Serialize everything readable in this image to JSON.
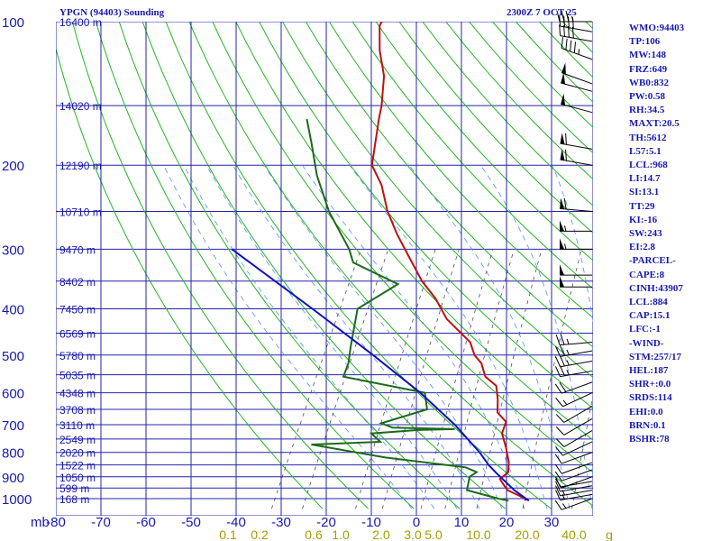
{
  "header": {
    "station": "YPGN (94403) Sounding",
    "valid_time": "2300Z  7 OCT 25"
  },
  "indices": [
    "WMO:94403",
    "TP:106",
    "MW:148",
    "FRZ:649",
    "WB0:832",
    "PW:0.58",
    "RH:34.5",
    "MAXT:20.5",
    "TH:5612",
    "L57:5.1",
    "LCL:968",
    "LI:14.7",
    "SI:13.1",
    "TT:29",
    "KI:-16",
    "SW:243",
    "EI:2.8",
    "-PARCEL-",
    "CAPE:8",
    "CINH:43907",
    "LCL:884",
    "CAP:15.1",
    "LFC:-1",
    "-WIND-",
    "STM:257/17",
    "HEL:187",
    "SHR+:0.0",
    "SRDS:114",
    "EHI:0.0",
    "BRN:0.1",
    "BSHR:78"
  ],
  "colors": {
    "text": "#1818b0",
    "grid": "#2424a8",
    "dry_adiabats": "#24b424",
    "moist_adiabats": "#5a8cff",
    "mixing_ratio": "#505050",
    "temperature": "#c01010",
    "dewpoint": "#1b6b1b",
    "parcel": "#1010c0",
    "barbs": "#000000"
  },
  "chart_data": {
    "type": "skew-t",
    "x_unit_label": "mb",
    "pressure_ticks": [
      "100",
      "200",
      "300",
      "400",
      "500",
      "600",
      "700",
      "800",
      "900",
      "1000"
    ],
    "pressure_values": [
      100,
      200,
      300,
      400,
      500,
      600,
      700,
      800,
      900,
      1000
    ],
    "temperature_ticks": [
      "-80",
      "-70",
      "-60",
      "-50",
      "-40",
      "-30",
      "-20",
      "-10",
      "0",
      "10",
      "20",
      "30"
    ],
    "mixing_ratio_ticks": [
      "0.1",
      "0.2",
      "0.6",
      "1.0",
      "2.0",
      "3.0",
      "5.0",
      "10.0",
      "20.0",
      "40.0",
      "g"
    ],
    "height_labels": [
      {
        "p": 100,
        "label": "16400 m"
      },
      {
        "p": 150,
        "label": "14020 m"
      },
      {
        "p": 200,
        "label": "12190 m"
      },
      {
        "p": 250,
        "label": "10710 m"
      },
      {
        "p": 300,
        "label": "9470 m"
      },
      {
        "p": 350,
        "label": "8402 m"
      },
      {
        "p": 400,
        "label": "7450 m"
      },
      {
        "p": 450,
        "label": "6569 m"
      },
      {
        "p": 500,
        "label": "5780 m"
      },
      {
        "p": 550,
        "label": "5035 m"
      },
      {
        "p": 600,
        "label": "4348 m"
      },
      {
        "p": 650,
        "label": "3708 m"
      },
      {
        "p": 700,
        "label": "3110 m"
      },
      {
        "p": 750,
        "label": "2549 m"
      },
      {
        "p": 800,
        "label": "2020 m"
      },
      {
        "p": 850,
        "label": "1522 m"
      },
      {
        "p": 900,
        "label": "1050 m"
      },
      {
        "p": 950,
        "label": "599 m"
      },
      {
        "p": 1000,
        "label": "168 m"
      }
    ],
    "series": [
      {
        "name": "temperature",
        "points": [
          [
            1010,
            14.3
          ],
          [
            1000,
            14.0
          ],
          [
            960,
            9.0
          ],
          [
            935,
            7.5
          ],
          [
            910,
            6.0
          ],
          [
            880,
            7.0
          ],
          [
            840,
            6.0
          ],
          [
            780,
            3.5
          ],
          [
            730,
            1.0
          ],
          [
            690,
            0.5
          ],
          [
            660,
            -2.5
          ],
          [
            620,
            -4.0
          ],
          [
            580,
            -6.0
          ],
          [
            555,
            -9.5
          ],
          [
            520,
            -12.0
          ],
          [
            500,
            -14.5
          ],
          [
            470,
            -17.0
          ],
          [
            420,
            -25.0
          ],
          [
            380,
            -30.0
          ],
          [
            350,
            -35.0
          ],
          [
            310,
            -41.0
          ],
          [
            280,
            -46.0
          ],
          [
            250,
            -51.0
          ],
          [
            220,
            -55.5
          ],
          [
            200,
            -60.0
          ],
          [
            160,
            -64.0
          ],
          [
            150,
            -65.0
          ],
          [
            130,
            -68.0
          ],
          [
            115,
            -72.0
          ],
          [
            102,
            -75.0
          ],
          [
            100,
            -75.0
          ]
        ]
      },
      {
        "name": "dewpoint",
        "points": [
          [
            1010,
            10.5
          ],
          [
            1000,
            8.0
          ],
          [
            960,
            0.0
          ],
          [
            900,
            -1.0
          ],
          [
            880,
            0.0
          ],
          [
            860,
            -3.0
          ],
          [
            820,
            -22.0
          ],
          [
            770,
            -40.0
          ],
          [
            760,
            -25.0
          ],
          [
            730,
            -28.0
          ],
          [
            718,
            -18.0
          ],
          [
            715,
            -10.0
          ],
          [
            710,
            -24.0
          ],
          [
            695,
            -27.0
          ],
          [
            650,
            -18.5
          ],
          [
            600,
            -21.0
          ],
          [
            555,
            -41.0
          ],
          [
            520,
            -41.5
          ],
          [
            480,
            -43.0
          ],
          [
            400,
            -46.0
          ],
          [
            355,
            -40.0
          ],
          [
            320,
            -52.5
          ],
          [
            300,
            -55.0
          ],
          [
            250,
            -64.0
          ],
          [
            210,
            -71.0
          ],
          [
            180,
            -76.0
          ],
          [
            160,
            -80.0
          ]
        ]
      },
      {
        "name": "parcel",
        "points": [
          [
            1010,
            15.0
          ],
          [
            960,
            10.5
          ],
          [
            884,
            4.5
          ],
          [
            850,
            1.8
          ],
          [
            800,
            -1.7
          ],
          [
            700,
            -10.5
          ],
          [
            600,
            -22.0
          ],
          [
            500,
            -37.0
          ],
          [
            400,
            -56.0
          ],
          [
            300,
            -81.0
          ]
        ]
      }
    ],
    "wind_barbs": [
      {
        "p": 1000,
        "dir": 250,
        "spd": 15
      },
      {
        "p": 980,
        "dir": 260,
        "spd": 15
      },
      {
        "p": 960,
        "dir": 260,
        "spd": 15
      },
      {
        "p": 940,
        "dir": 260,
        "spd": 10
      },
      {
        "p": 920,
        "dir": 260,
        "spd": 10
      },
      {
        "p": 900,
        "dir": 250,
        "spd": 10
      },
      {
        "p": 870,
        "dir": 250,
        "spd": 10
      },
      {
        "p": 840,
        "dir": 250,
        "spd": 10
      },
      {
        "p": 800,
        "dir": 250,
        "spd": 10
      },
      {
        "p": 760,
        "dir": 245,
        "spd": 10
      },
      {
        "p": 720,
        "dir": 240,
        "spd": 10
      },
      {
        "p": 680,
        "dir": 240,
        "spd": 10
      },
      {
        "p": 640,
        "dir": 240,
        "spd": 10
      },
      {
        "p": 600,
        "dir": 245,
        "spd": 15
      },
      {
        "p": 570,
        "dir": 250,
        "spd": 20
      },
      {
        "p": 540,
        "dir": 260,
        "spd": 25
      },
      {
        "p": 515,
        "dir": 260,
        "spd": 25
      },
      {
        "p": 490,
        "dir": 260,
        "spd": 25
      },
      {
        "p": 470,
        "dir": 265,
        "spd": 25
      },
      {
        "p": 360,
        "dir": 270,
        "spd": 50
      },
      {
        "p": 340,
        "dir": 270,
        "spd": 50
      },
      {
        "p": 300,
        "dir": 270,
        "spd": 55
      },
      {
        "p": 275,
        "dir": 270,
        "spd": 55
      },
      {
        "p": 250,
        "dir": 275,
        "spd": 60
      },
      {
        "p": 200,
        "dir": 280,
        "spd": 60
      },
      {
        "p": 185,
        "dir": 280,
        "spd": 60
      },
      {
        "p": 155,
        "dir": 285,
        "spd": 50
      },
      {
        "p": 140,
        "dir": 285,
        "spd": 50
      },
      {
        "p": 135,
        "dir": 290,
        "spd": 50
      },
      {
        "p": 120,
        "dir": 290,
        "spd": 45
      },
      {
        "p": 110,
        "dir": 280,
        "spd": 40
      },
      {
        "p": 105,
        "dir": 280,
        "spd": 40
      },
      {
        "p": 100,
        "dir": 270,
        "spd": 35
      }
    ]
  }
}
